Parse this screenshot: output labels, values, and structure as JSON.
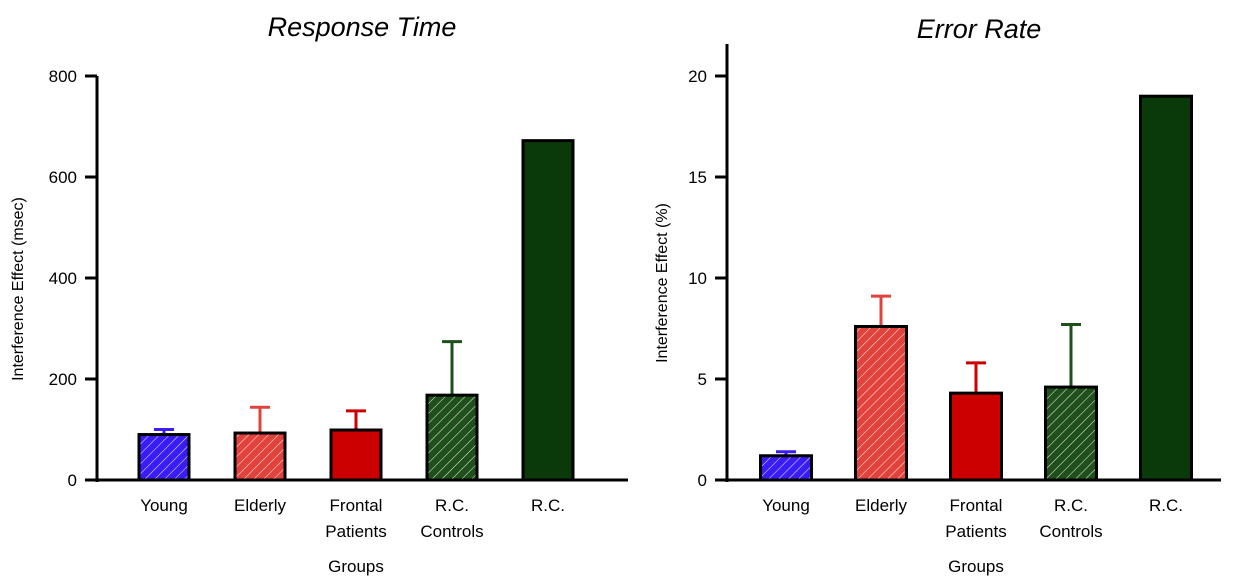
{
  "chart_data": [
    {
      "type": "bar",
      "title": "Response Time",
      "xlabel": "Groups",
      "ylabel": "Interference Effect (msec)",
      "ylim": [
        0,
        800
      ],
      "yticks": [
        0,
        200,
        400,
        600,
        800
      ],
      "categories": [
        "Young",
        "Elderly",
        "Frontal Patients",
        "R.C. Controls",
        "R.C."
      ],
      "category_lines": [
        [
          "Young"
        ],
        [
          "Elderly"
        ],
        [
          "Frontal",
          "Patients"
        ],
        [
          "R.C.",
          "Controls"
        ],
        [
          "R.C."
        ]
      ],
      "values": [
        90,
        93,
        99,
        168,
        672
      ],
      "errors": [
        10,
        51,
        38,
        106,
        null
      ],
      "colors": [
        "#3a1cf4",
        "#e2423c",
        "#cc0000",
        "#1f4f1b",
        "#0a3a0a"
      ],
      "hatched": [
        true,
        true,
        false,
        true,
        false
      ],
      "grid": false,
      "legend": "none"
    },
    {
      "type": "bar",
      "title": "Error Rate",
      "xlabel": "Groups",
      "ylabel": "Interference Effect (%)",
      "ylim": [
        0,
        20
      ],
      "yticks": [
        0,
        5,
        10,
        15,
        20
      ],
      "categories": [
        "Young",
        "Elderly",
        "Frontal Patients",
        "R.C. Controls",
        "R.C."
      ],
      "category_lines": [
        [
          "Young"
        ],
        [
          "Elderly"
        ],
        [
          "Frontal",
          "Patients"
        ],
        [
          "R.C.",
          "Controls"
        ],
        [
          "R.C."
        ]
      ],
      "values": [
        1.2,
        7.6,
        4.3,
        4.6,
        19.0
      ],
      "errors": [
        0.2,
        1.5,
        1.5,
        3.1,
        null
      ],
      "colors": [
        "#3a1cf4",
        "#e2423c",
        "#cc0000",
        "#1f4f1b",
        "#0a3a0a"
      ],
      "hatched": [
        true,
        true,
        false,
        true,
        false
      ],
      "grid": false,
      "legend": "none"
    }
  ]
}
